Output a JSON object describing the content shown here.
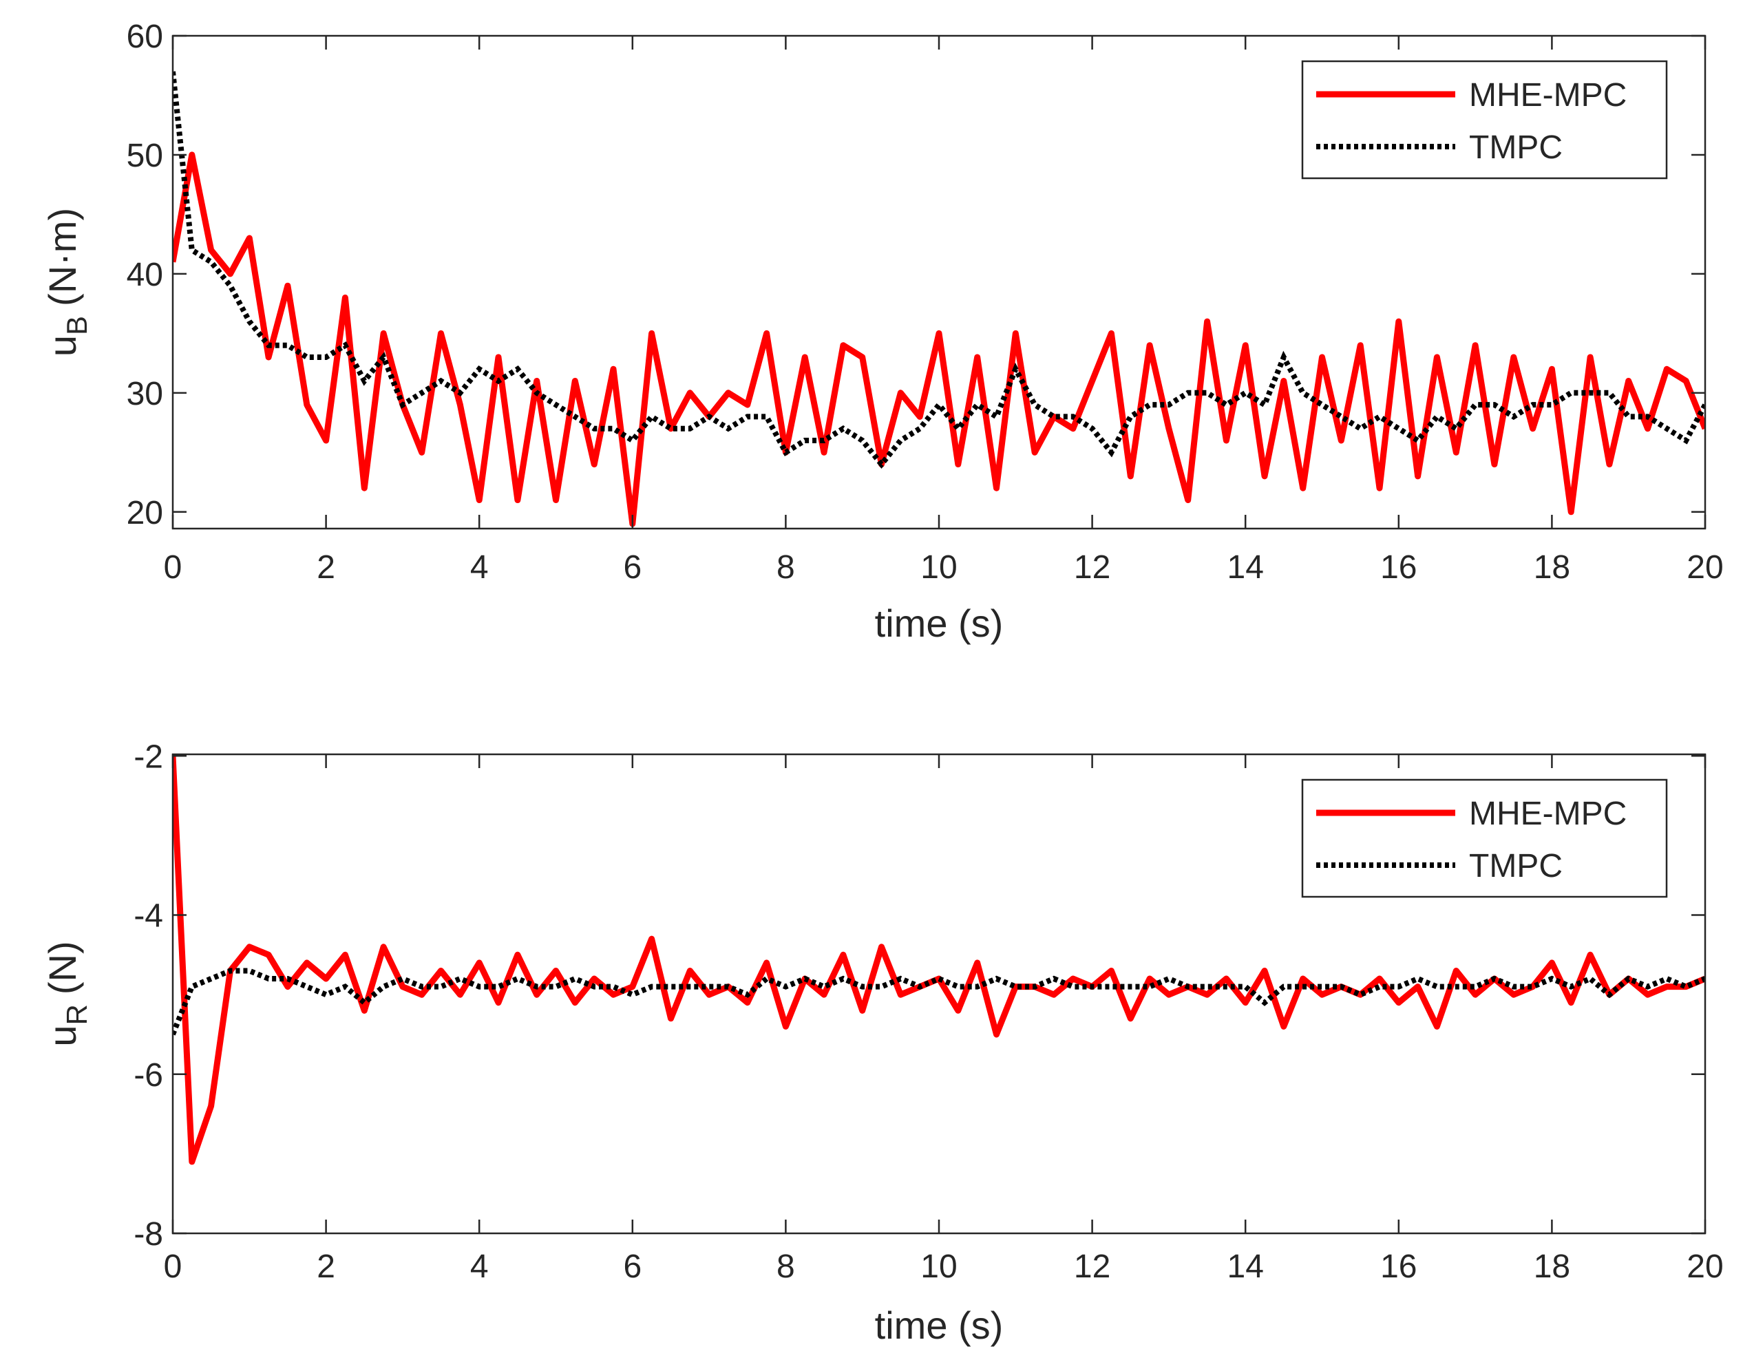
{
  "chart_data": [
    {
      "type": "line",
      "ylabel": "u",
      "ylabel_sub": "B",
      "ylabel_unit": "(N·m)",
      "xlabel": "time (s)",
      "xlim": [
        0,
        20
      ],
      "ylim": [
        18.6,
        60
      ],
      "xticks": [
        0,
        2,
        4,
        6,
        8,
        10,
        12,
        14,
        16,
        18,
        20
      ],
      "yticks": [
        20,
        30,
        40,
        50,
        60
      ],
      "legend": "northeast",
      "x": [
        0,
        0.25,
        0.5,
        0.75,
        1,
        1.25,
        1.5,
        1.75,
        2,
        2.25,
        2.5,
        2.75,
        3,
        3.25,
        3.5,
        3.75,
        4,
        4.25,
        4.5,
        4.75,
        5,
        5.25,
        5.5,
        5.75,
        6,
        6.25,
        6.5,
        6.75,
        7,
        7.25,
        7.5,
        7.75,
        8,
        8.25,
        8.5,
        8.75,
        9,
        9.25,
        9.5,
        9.75,
        10,
        10.25,
        10.5,
        10.75,
        11,
        11.25,
        11.5,
        11.75,
        12,
        12.25,
        12.5,
        12.75,
        13,
        13.25,
        13.5,
        13.75,
        14,
        14.25,
        14.5,
        14.75,
        15,
        15.25,
        15.5,
        15.75,
        16,
        16.25,
        16.5,
        16.75,
        17,
        17.25,
        17.5,
        17.75,
        18,
        18.25,
        18.5,
        18.75,
        19,
        19.25,
        19.5,
        19.75,
        20
      ],
      "series": [
        {
          "name": "MHE-MPC",
          "color": "#ff0000",
          "style": "solid",
          "values": [
            41,
            50,
            42,
            40,
            43,
            33,
            39,
            29,
            26,
            38,
            22,
            35,
            29,
            25,
            35,
            29,
            21,
            33,
            21,
            31,
            21,
            31,
            24,
            32,
            19,
            35,
            27,
            30,
            28,
            30,
            29,
            35,
            25,
            33,
            25,
            34,
            33,
            24,
            30,
            28,
            35,
            24,
            33,
            22,
            35,
            25,
            28,
            27,
            31,
            35,
            23,
            34,
            27,
            21,
            36,
            26,
            34,
            23,
            31,
            22,
            33,
            26,
            34,
            22,
            36,
            23,
            33,
            25,
            34,
            24,
            33,
            27,
            32,
            20,
            33,
            24,
            31,
            27,
            32,
            31,
            27
          ]
        },
        {
          "name": "TMPC",
          "color": "#000000",
          "style": "dotted",
          "values": [
            57,
            42,
            41,
            39,
            36,
            34,
            34,
            33,
            33,
            34,
            31,
            33,
            29,
            30,
            31,
            30,
            32,
            31,
            32,
            30,
            29,
            28,
            27,
            27,
            26,
            28,
            27,
            27,
            28,
            27,
            28,
            28,
            25,
            26,
            26,
            27,
            26,
            24,
            26,
            27,
            29,
            27,
            29,
            28,
            32,
            29,
            28,
            28,
            27,
            25,
            28,
            29,
            29,
            30,
            30,
            29,
            30,
            29,
            33,
            30,
            29,
            28,
            27,
            28,
            27,
            26,
            28,
            27,
            29,
            29,
            28,
            29,
            29,
            30,
            30,
            30,
            28,
            28,
            27,
            26,
            29
          ]
        }
      ]
    },
    {
      "type": "line",
      "ylabel": "u",
      "ylabel_sub": "R",
      "ylabel_unit": "(N)",
      "xlabel": "time (s)",
      "xlim": [
        0,
        20
      ],
      "ylim": [
        -8,
        -1.98
      ],
      "xticks": [
        0,
        2,
        4,
        6,
        8,
        10,
        12,
        14,
        16,
        18,
        20
      ],
      "yticks": [
        -8,
        -6,
        -4,
        -2
      ],
      "legend": "northeast",
      "x": [
        0,
        0.25,
        0.5,
        0.75,
        1,
        1.25,
        1.5,
        1.75,
        2,
        2.25,
        2.5,
        2.75,
        3,
        3.25,
        3.5,
        3.75,
        4,
        4.25,
        4.5,
        4.75,
        5,
        5.25,
        5.5,
        5.75,
        6,
        6.25,
        6.5,
        6.75,
        7,
        7.25,
        7.5,
        7.75,
        8,
        8.25,
        8.5,
        8.75,
        9,
        9.25,
        9.5,
        9.75,
        10,
        10.25,
        10.5,
        10.75,
        11,
        11.25,
        11.5,
        11.75,
        12,
        12.25,
        12.5,
        12.75,
        13,
        13.25,
        13.5,
        13.75,
        14,
        14.25,
        14.5,
        14.75,
        15,
        15.25,
        15.5,
        15.75,
        16,
        16.25,
        16.5,
        16.75,
        17,
        17.25,
        17.5,
        17.75,
        18,
        18.25,
        18.5,
        18.75,
        19,
        19.25,
        19.5,
        19.75,
        20
      ],
      "series": [
        {
          "name": "MHE-MPC",
          "color": "#ff0000",
          "style": "solid",
          "values": [
            -2.0,
            -7.1,
            -6.4,
            -4.7,
            -4.4,
            -4.5,
            -4.9,
            -4.6,
            -4.8,
            -4.5,
            -5.2,
            -4.4,
            -4.9,
            -5.0,
            -4.7,
            -5.0,
            -4.6,
            -5.1,
            -4.5,
            -5.0,
            -4.7,
            -5.1,
            -4.8,
            -5.0,
            -4.9,
            -4.3,
            -5.3,
            -4.7,
            -5.0,
            -4.9,
            -5.1,
            -4.6,
            -5.4,
            -4.8,
            -5.0,
            -4.5,
            -5.2,
            -4.4,
            -5.0,
            -4.9,
            -4.8,
            -5.2,
            -4.6,
            -5.5,
            -4.9,
            -4.9,
            -5.0,
            -4.8,
            -4.9,
            -4.7,
            -5.3,
            -4.8,
            -5.0,
            -4.9,
            -5.0,
            -4.8,
            -5.1,
            -4.7,
            -5.4,
            -4.8,
            -5.0,
            -4.9,
            -5.0,
            -4.8,
            -5.1,
            -4.9,
            -5.4,
            -4.7,
            -5.0,
            -4.8,
            -5.0,
            -4.9,
            -4.6,
            -5.1,
            -4.5,
            -5.0,
            -4.8,
            -5.0,
            -4.9,
            -4.9,
            -4.8
          ]
        },
        {
          "name": "TMPC",
          "color": "#000000",
          "style": "dotted",
          "values": [
            -5.5,
            -4.9,
            -4.8,
            -4.7,
            -4.7,
            -4.8,
            -4.8,
            -4.9,
            -5.0,
            -4.9,
            -5.1,
            -4.9,
            -4.8,
            -4.9,
            -4.9,
            -4.8,
            -4.9,
            -4.9,
            -4.8,
            -4.9,
            -4.9,
            -4.8,
            -4.9,
            -4.9,
            -5.0,
            -4.9,
            -4.9,
            -4.9,
            -4.9,
            -4.9,
            -5.0,
            -4.8,
            -4.9,
            -4.8,
            -4.9,
            -4.8,
            -4.9,
            -4.9,
            -4.8,
            -4.9,
            -4.8,
            -4.9,
            -4.9,
            -4.8,
            -4.9,
            -4.9,
            -4.8,
            -4.9,
            -4.9,
            -4.9,
            -4.9,
            -4.9,
            -4.8,
            -4.9,
            -4.9,
            -4.9,
            -4.9,
            -5.1,
            -4.9,
            -4.9,
            -4.9,
            -4.9,
            -5.0,
            -4.9,
            -4.9,
            -4.8,
            -4.9,
            -4.9,
            -4.9,
            -4.8,
            -4.9,
            -4.9,
            -4.8,
            -4.9,
            -4.8,
            -5.0,
            -4.8,
            -4.9,
            -4.8,
            -4.9,
            -4.8
          ]
        }
      ]
    }
  ]
}
